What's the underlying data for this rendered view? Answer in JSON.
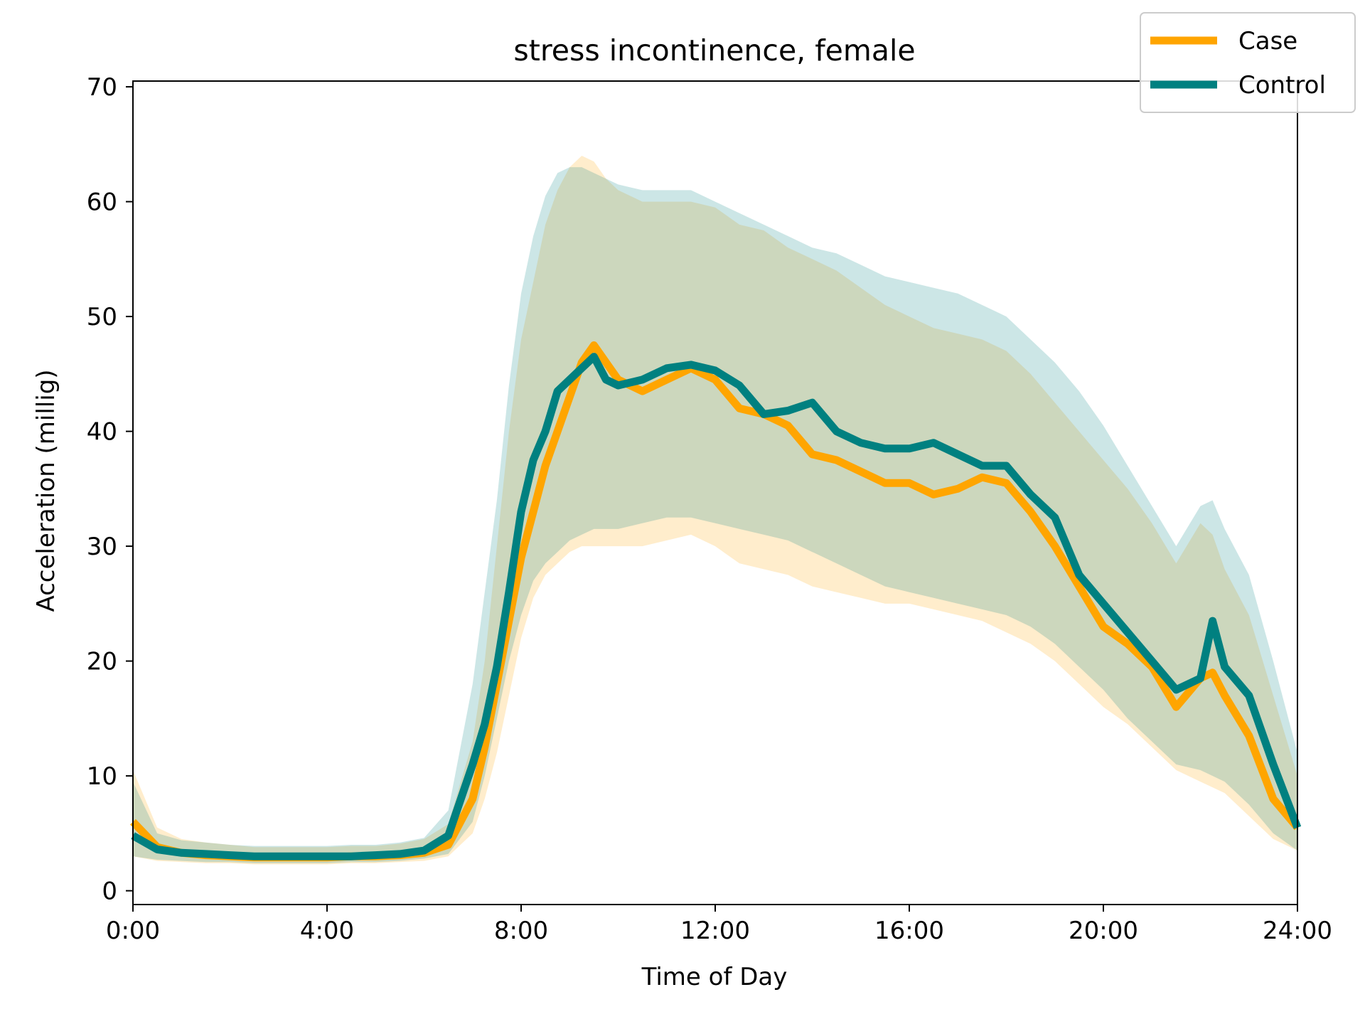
{
  "chart_data": {
    "type": "line",
    "title": "stress incontinence, female",
    "xlabel": "Time of Day",
    "ylabel": "Acceleration (millig)",
    "xlim": [
      0,
      24
    ],
    "ylim": [
      -1.2,
      70.5
    ],
    "x_ticks": [
      {
        "value": 0,
        "label": "0:00"
      },
      {
        "value": 4,
        "label": "4:00"
      },
      {
        "value": 8,
        "label": "8:00"
      },
      {
        "value": 12,
        "label": "12:00"
      },
      {
        "value": 16,
        "label": "16:00"
      },
      {
        "value": 20,
        "label": "20:00"
      },
      {
        "value": 24,
        "label": "24:00"
      }
    ],
    "y_ticks": [
      {
        "value": 0,
        "label": "0"
      },
      {
        "value": 10,
        "label": "10"
      },
      {
        "value": 20,
        "label": "20"
      },
      {
        "value": 30,
        "label": "30"
      },
      {
        "value": 40,
        "label": "40"
      },
      {
        "value": 50,
        "label": "50"
      },
      {
        "value": 60,
        "label": "60"
      },
      {
        "value": 70,
        "label": "70"
      }
    ],
    "grid": false,
    "legend_position": "top-right",
    "x": [
      0.0,
      0.5,
      1.0,
      1.5,
      2.0,
      2.5,
      3.0,
      3.5,
      4.0,
      4.5,
      5.0,
      5.5,
      6.0,
      6.5,
      7.0,
      7.25,
      7.5,
      7.75,
      8.0,
      8.25,
      8.5,
      8.75,
      9.0,
      9.25,
      9.5,
      9.75,
      10.0,
      10.5,
      11.0,
      11.5,
      12.0,
      12.5,
      13.0,
      13.5,
      14.0,
      14.5,
      15.0,
      15.5,
      16.0,
      16.5,
      17.0,
      17.5,
      18.0,
      18.5,
      19.0,
      19.5,
      20.0,
      20.5,
      21.0,
      21.5,
      22.0,
      22.25,
      22.5,
      23.0,
      23.5,
      24.0
    ],
    "series": [
      {
        "name": "Case",
        "color": "#FFA500",
        "values": [
          6.0,
          3.8,
          3.3,
          3.1,
          3.0,
          2.9,
          2.9,
          2.9,
          2.9,
          3.0,
          3.0,
          3.1,
          3.3,
          4.0,
          8.0,
          12.5,
          18.0,
          23.5,
          29.0,
          33.0,
          37.0,
          40.0,
          43.0,
          46.0,
          47.5,
          46.0,
          44.5,
          43.5,
          44.5,
          45.5,
          44.5,
          42.0,
          41.5,
          40.5,
          38.0,
          37.5,
          36.5,
          35.5,
          35.5,
          34.5,
          35.0,
          36.0,
          35.5,
          33.0,
          30.0,
          26.5,
          23.0,
          21.5,
          19.5,
          16.0,
          18.5,
          19.0,
          17.0,
          13.5,
          8.0,
          5.5
        ],
        "lower": [
          3.0,
          2.6,
          2.5,
          2.4,
          2.4,
          2.3,
          2.3,
          2.3,
          2.3,
          2.4,
          2.4,
          2.5,
          2.6,
          3.0,
          5.0,
          8.0,
          12.0,
          17.0,
          22.0,
          25.5,
          27.5,
          28.5,
          29.5,
          30.0,
          30.0,
          30.0,
          30.0,
          30.0,
          30.5,
          31.0,
          30.0,
          28.5,
          28.0,
          27.5,
          26.5,
          26.0,
          25.5,
          25.0,
          25.0,
          24.5,
          24.0,
          23.5,
          22.5,
          21.5,
          20.0,
          18.0,
          16.0,
          14.5,
          12.5,
          10.5,
          9.5,
          9.0,
          8.5,
          6.5,
          4.5,
          3.5
        ],
        "upper": [
          10.5,
          5.5,
          4.5,
          4.2,
          4.0,
          3.8,
          3.8,
          3.8,
          3.8,
          3.9,
          3.9,
          4.1,
          4.5,
          5.8,
          13.0,
          20.0,
          30.0,
          40.0,
          48.0,
          53.0,
          58.0,
          61.0,
          63.0,
          64.0,
          63.5,
          62.0,
          61.0,
          60.0,
          60.0,
          60.0,
          59.5,
          58.0,
          57.5,
          56.0,
          55.0,
          54.0,
          52.5,
          51.0,
          50.0,
          49.0,
          48.5,
          48.0,
          47.0,
          45.0,
          42.5,
          40.0,
          37.5,
          35.0,
          32.0,
          28.5,
          32.0,
          31.0,
          28.0,
          24.0,
          17.0,
          10.0
        ]
      },
      {
        "name": "Control",
        "color": "#008080",
        "values": [
          4.8,
          3.6,
          3.3,
          3.2,
          3.1,
          3.0,
          3.0,
          3.0,
          3.0,
          3.0,
          3.1,
          3.2,
          3.5,
          4.8,
          11.0,
          14.5,
          19.5,
          26.0,
          33.0,
          37.5,
          40.0,
          43.5,
          44.5,
          45.5,
          46.5,
          44.5,
          44.0,
          44.5,
          45.5,
          45.8,
          45.3,
          44.0,
          41.5,
          41.8,
          42.5,
          40.0,
          39.0,
          38.5,
          38.5,
          39.0,
          38.0,
          37.0,
          37.0,
          34.5,
          32.5,
          27.5,
          25.0,
          22.5,
          20.0,
          17.5,
          18.5,
          23.5,
          19.5,
          17.0,
          11.0,
          5.5
        ],
        "lower": [
          3.0,
          2.7,
          2.6,
          2.5,
          2.5,
          2.4,
          2.4,
          2.4,
          2.4,
          2.5,
          2.5,
          2.6,
          2.8,
          3.2,
          6.0,
          10.0,
          15.0,
          20.0,
          24.0,
          27.0,
          28.5,
          29.5,
          30.5,
          31.0,
          31.5,
          31.5,
          31.5,
          32.0,
          32.5,
          32.5,
          32.0,
          31.5,
          31.0,
          30.5,
          29.5,
          28.5,
          27.5,
          26.5,
          26.0,
          25.5,
          25.0,
          24.5,
          24.0,
          23.0,
          21.5,
          19.5,
          17.5,
          15.0,
          13.0,
          11.0,
          10.5,
          10.0,
          9.5,
          7.5,
          5.0,
          3.5
        ],
        "upper": [
          9.5,
          5.0,
          4.4,
          4.2,
          4.0,
          3.9,
          3.9,
          3.9,
          3.9,
          4.0,
          4.0,
          4.2,
          4.6,
          7.0,
          18.0,
          26.0,
          34.0,
          44.0,
          52.0,
          57.0,
          60.5,
          62.5,
          63.0,
          63.0,
          62.5,
          62.0,
          61.5,
          61.0,
          61.0,
          61.0,
          60.0,
          59.0,
          58.0,
          57.0,
          56.0,
          55.5,
          54.5,
          53.5,
          53.0,
          52.5,
          52.0,
          51.0,
          50.0,
          48.0,
          46.0,
          43.5,
          40.5,
          37.0,
          33.5,
          30.0,
          33.5,
          34.0,
          31.5,
          27.5,
          20.0,
          12.0
        ]
      }
    ]
  }
}
